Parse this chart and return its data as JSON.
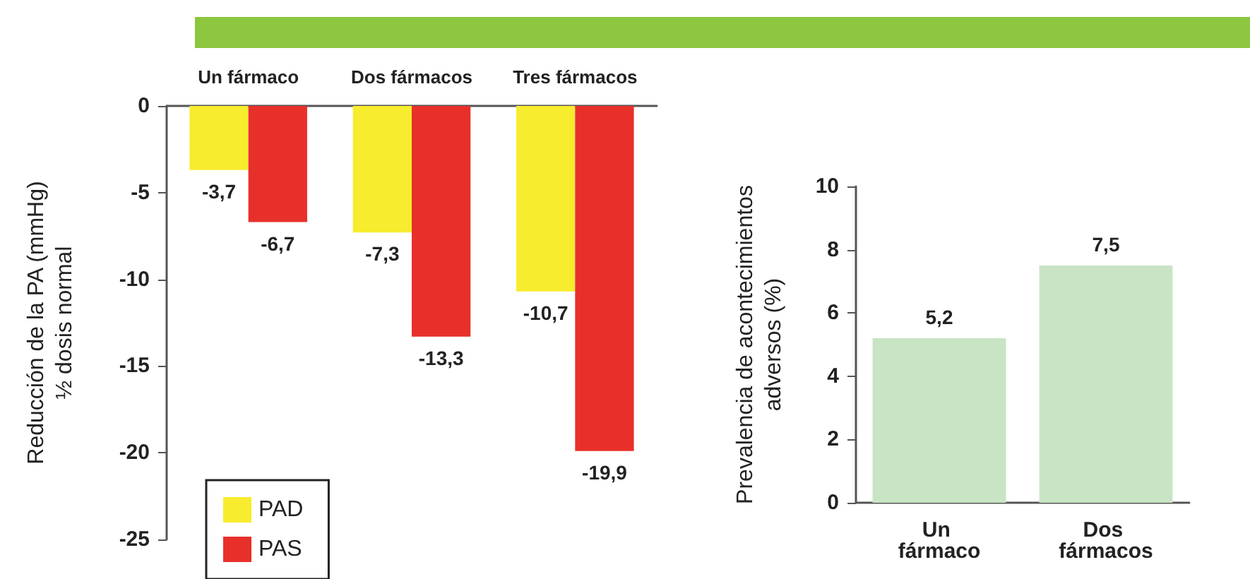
{
  "chart_data": [
    {
      "type": "bar",
      "categories": [
        "Un fármaco",
        "Dos fármacos",
        "Tres fármacos"
      ],
      "ylabel": "Reducción de la PA (mmHg)\n½ dosis normal",
      "series": [
        {
          "name": "PAD",
          "color": "#f7ec2e",
          "values": [
            -3.7,
            -7.3,
            -10.7
          ],
          "value_labels": [
            "-3,7",
            "-7,3",
            "-10,7"
          ]
        },
        {
          "name": "PAS",
          "color": "#e8302a",
          "values": [
            -6.7,
            -13.3,
            -19.9
          ],
          "value_labels": [
            "-6,7",
            "-13,3",
            "-19,9"
          ]
        }
      ],
      "ylim": [
        -25,
        0
      ],
      "yticks": [
        -25,
        -20,
        -15,
        -10,
        -5,
        0
      ],
      "grid": false,
      "legend": "bottom left"
    },
    {
      "type": "bar",
      "categories": [
        "Un fármaco",
        "Dos fármacos"
      ],
      "ylabel": "Prevalencia de acontecimientos\nadversos (%)",
      "values": [
        5.2,
        7.5
      ],
      "color": "#c8e4c4",
      "value_labels": [
        "5,2",
        "7,5"
      ],
      "ylim": [
        0,
        10
      ],
      "yticks": [
        0,
        2,
        4,
        6,
        8,
        10
      ],
      "grid": false,
      "legend": false
    }
  ]
}
